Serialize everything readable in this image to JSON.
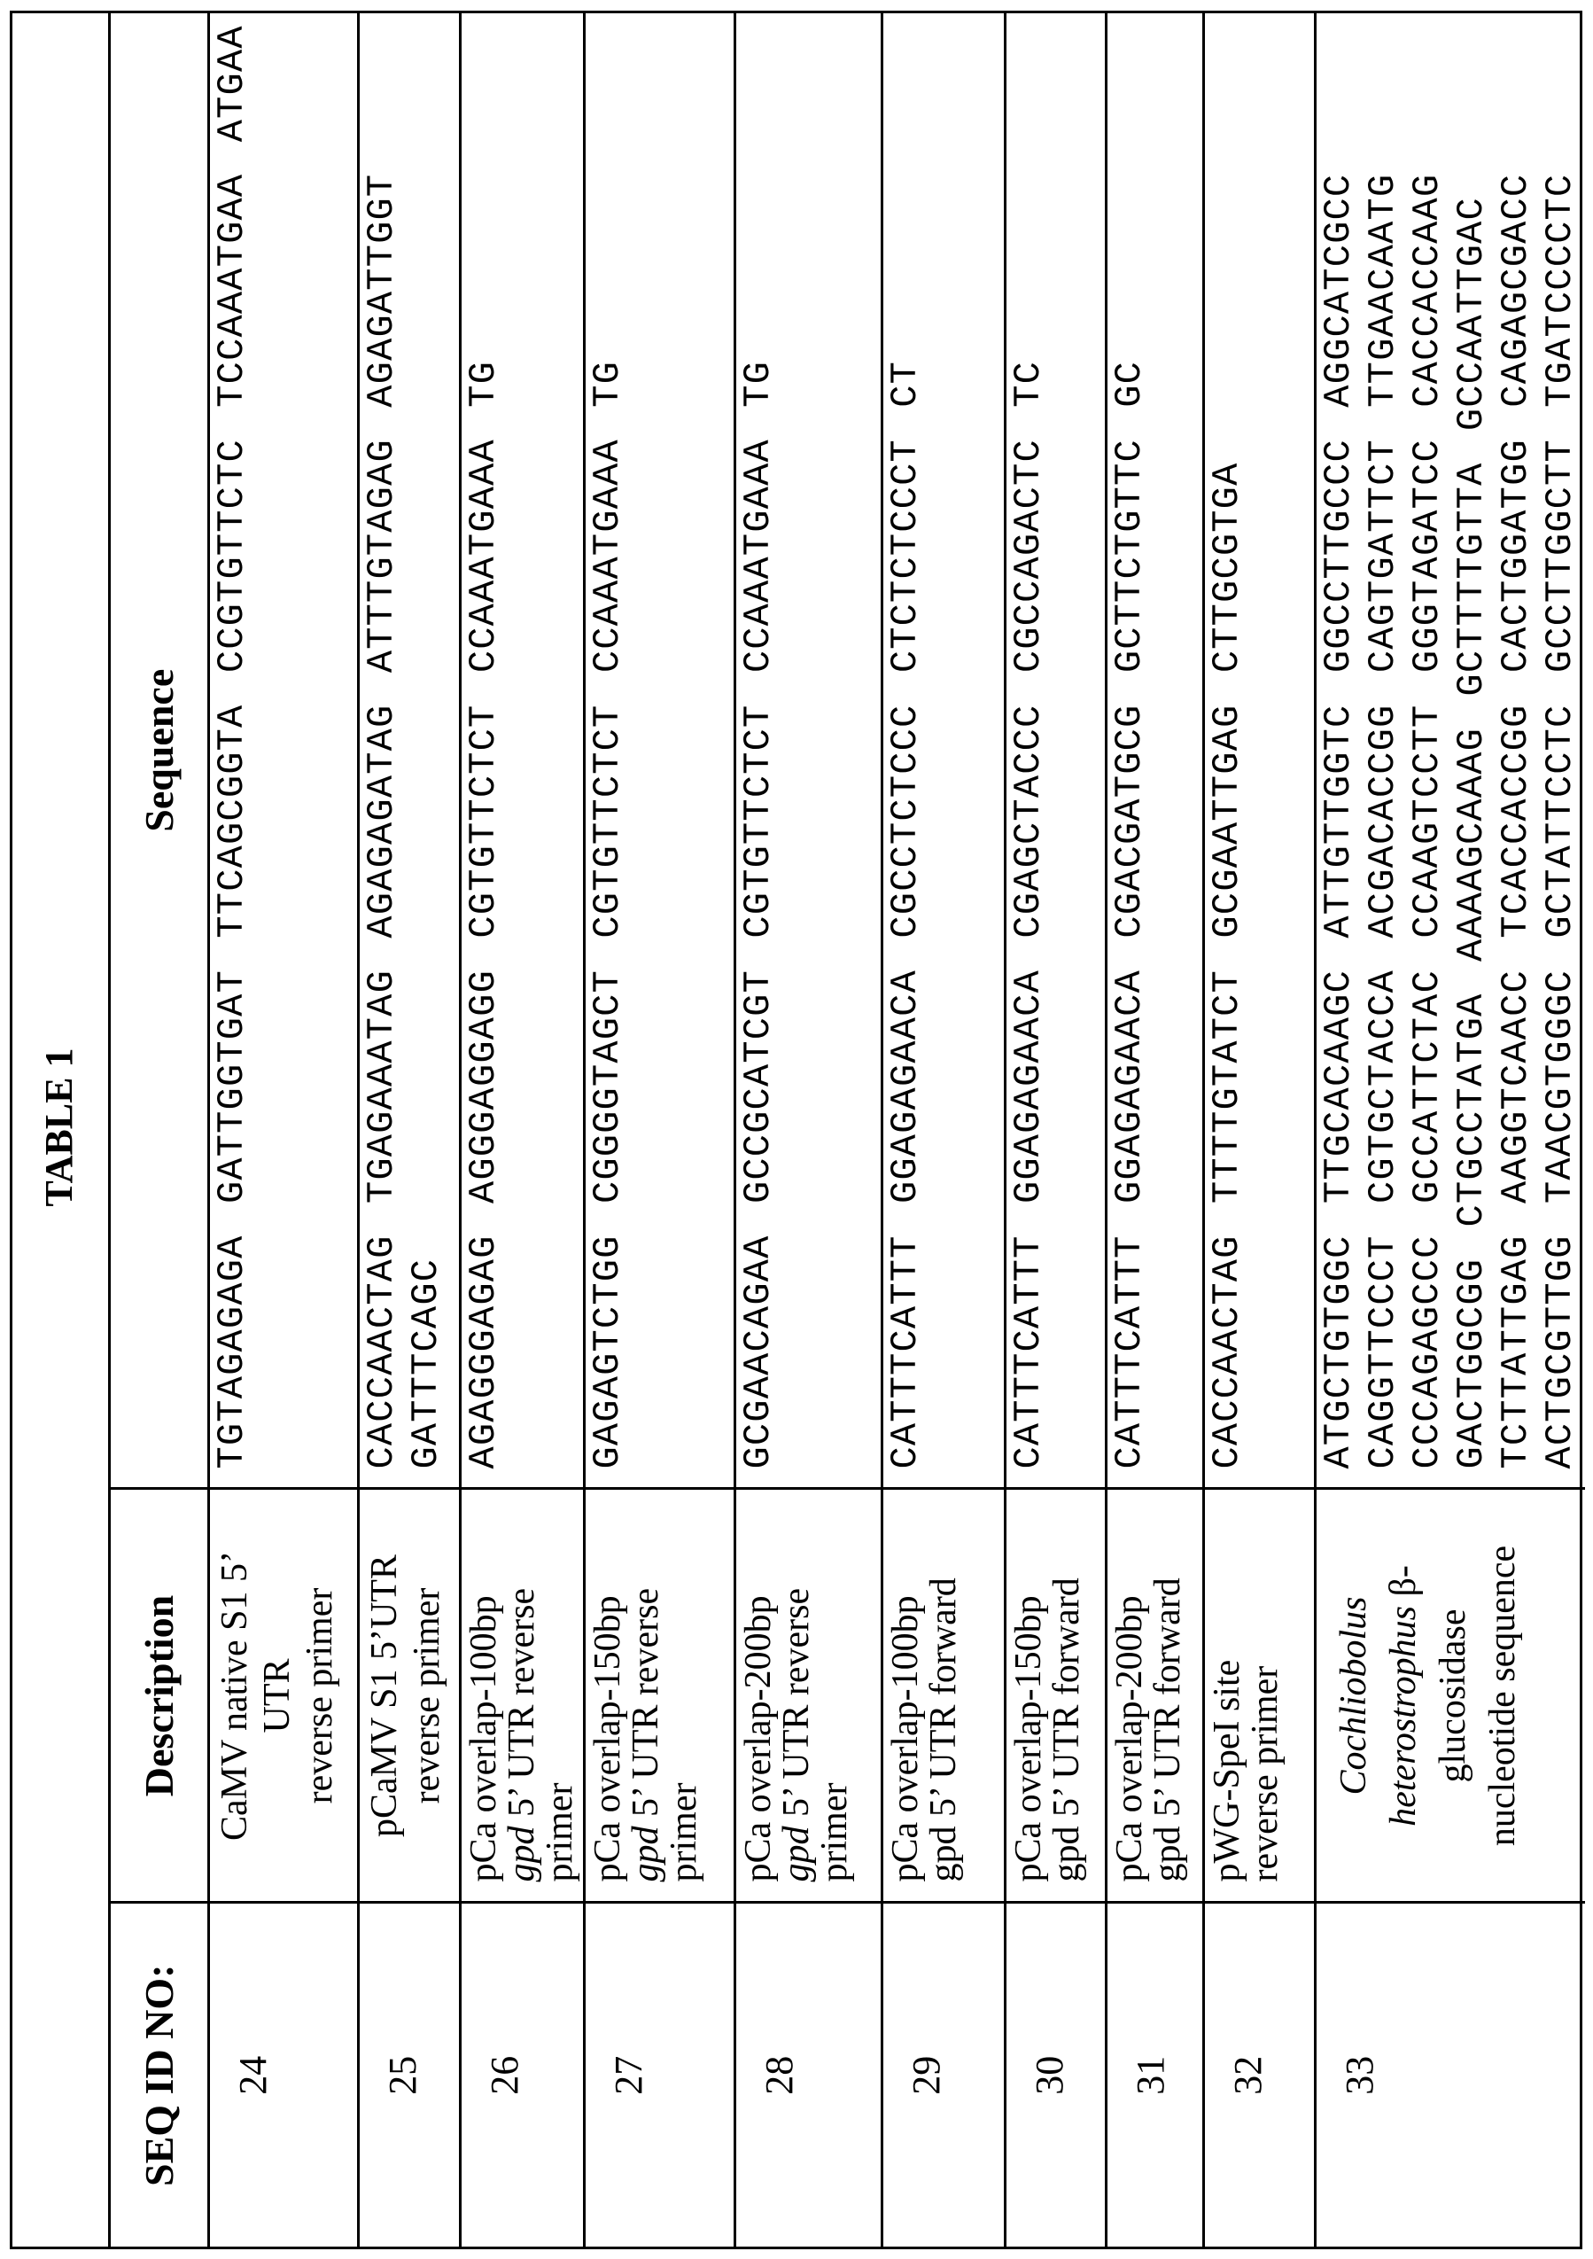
{
  "title": "TABLE 1",
  "table": {
    "headers": {
      "seq_id": "SEQ ID NO:",
      "description": "Description",
      "sequence": "Sequence"
    },
    "rows": [
      {
        "seq_id": "24",
        "description": [
          [
            {
              "t": "CaMV native S1 5’"
            }
          ],
          [
            {
              "t": "UTR"
            }
          ],
          [
            {
              "t": "reverse primer"
            }
          ]
        ],
        "sequence": [
          "TGTAGAGAGA GATTGGTGAT TTCAGCGGTA CCGTGTTCTC TCCAAATGAA ATGAA"
        ]
      },
      {
        "seq_id": "25",
        "description": [
          [
            {
              "t": "pCaMV S1 5’UTR"
            }
          ],
          [
            {
              "t": "reverse primer"
            }
          ]
        ],
        "sequence": [
          "CACCAACTAG TGAGAAATAG AGAGAGATAG ATTTGTAGAG AGAGATTGGT",
          "GATTTCAGC"
        ]
      },
      {
        "seq_id": "26",
        "description": [
          [
            {
              "t": "pCa overlap-100bp"
            }
          ],
          [
            {
              "t": "gpd",
              "i": true
            },
            {
              "t": " 5’ UTR reverse"
            }
          ],
          [
            {
              "t": "primer"
            }
          ]
        ],
        "sequence": [
          "AGAGGGAGAG AGGGAGGAGG CGTGTTCTCT CCAAATGAAA TG"
        ]
      },
      {
        "seq_id": "27",
        "description": [
          [
            {
              "t": "pCa overlap-150bp"
            }
          ],
          [
            {
              "t": "gpd",
              "i": true
            },
            {
              "t": " 5’ UTR reverse"
            }
          ],
          [
            {
              "t": "primer"
            }
          ]
        ],
        "sequence": [
          "GAGAGTCTGG CGGGGTAGCT CGTGTTCTCT CCAAATGAAA TG"
        ]
      },
      {
        "seq_id": "28",
        "description": [
          [
            {
              "t": "pCa overlap-200bp"
            }
          ],
          [
            {
              "t": "gpd",
              "i": true
            },
            {
              "t": " 5’ UTR reverse"
            }
          ],
          [
            {
              "t": "primer"
            }
          ]
        ],
        "sequence": [
          "GCGAACAGAA GCCGCATCGT CGTGTTCTCT CCAAATGAAA TG"
        ]
      },
      {
        "seq_id": "29",
        "description": [
          [
            {
              "t": "pCa overlap-100bp"
            }
          ],
          [
            {
              "t": "gpd 5’ UTR forward"
            }
          ]
        ],
        "sequence": [
          "CATTTCATTT GGAGAGAACA CGCCTCTCCC CTCTCTCCCT CT"
        ]
      },
      {
        "seq_id": "30",
        "description": [
          [
            {
              "t": "pCa overlap-150bp"
            }
          ],
          [
            {
              "t": "gpd 5’ UTR forward"
            }
          ]
        ],
        "sequence": [
          "CATTTCATTT GGAGAGAACA CGAGCTACCC CGCCAGACTC TC"
        ]
      },
      {
        "seq_id": "31",
        "description": [
          [
            {
              "t": "pCa overlap-200bp"
            }
          ],
          [
            {
              "t": "gpd 5’ UTR forward"
            }
          ]
        ],
        "sequence": [
          "CATTTCATTT GGAGAGAACA CGACGATGCG GCTTCTGTTC GC"
        ]
      },
      {
        "seq_id": "32",
        "description": [
          [
            {
              "t": "pWG-SpeI site"
            }
          ],
          [
            {
              "t": "reverse primer"
            }
          ]
        ],
        "sequence": [
          "CACCAACTAG TTTTGTATCT GCGAATTGAG CTTGCGTGA"
        ]
      },
      {
        "seq_id": "33",
        "description": [
          [
            {
              "t": "Cochliobolus",
              "i": true
            }
          ],
          [
            {
              "t": "heterostrophus",
              "i": true
            },
            {
              "t": " β-"
            }
          ],
          [
            {
              "t": "glucosidase"
            }
          ],
          [
            {
              "t": "nucleotide sequence"
            }
          ]
        ],
        "sequence": [
          "ATGCTGTGGC TTGCACAAGC ATTGTTGGTC GGCCTTGCCC AGGCATCGCC",
          "CAGGTTCCCT CGTGCTACCA ACGACACCGG CAGTGATTCT TTGAACAATG",
          "CCCAGAGCCC GCCATTCTAC CCAAGTCCTT GGGTAGATCC CACCACCAAG",
          "GACTGGCGG CTGCCTATGA AAAAGCAAAG GCTTTTGTTA GCCAATTGAC",
          "TCTTATTGAG AAGGTCAACC TCACCACCGG CACTGGATGG CAGAGCGACC",
          "ACTGCGTTGG TAACGTGGGC GCTATTCCTC GCCTTGGCTT TGATCCCCTC"
        ]
      }
    ]
  }
}
